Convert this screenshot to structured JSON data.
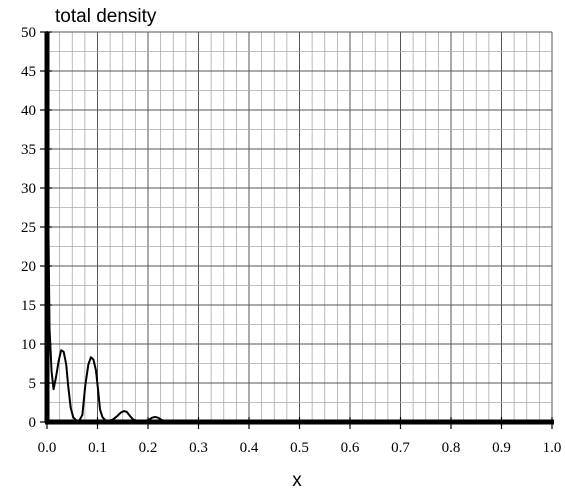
{
  "chart_data": {
    "type": "line",
    "title": "total density",
    "xlabel": "x",
    "ylabel": "",
    "xlim": [
      0.0,
      1.0
    ],
    "ylim": [
      0,
      50
    ],
    "grid": true,
    "x_major_ticks": [
      "0.0",
      "0.1",
      "0.2",
      "0.3",
      "0.4",
      "0.5",
      "0.6",
      "0.7",
      "0.8",
      "0.9",
      "1.0"
    ],
    "x_minor_step": 0.025,
    "y_major_ticks": [
      "0",
      "5",
      "10",
      "15",
      "20",
      "25",
      "30",
      "35",
      "40",
      "45",
      "50"
    ],
    "y_minor_step": 2.5,
    "series": [
      {
        "x": [
          0.0,
          0.002,
          0.005,
          0.009,
          0.013,
          0.018,
          0.023,
          0.028,
          0.033,
          0.038,
          0.042,
          0.047,
          0.052,
          0.058,
          0.064,
          0.07,
          0.076,
          0.082,
          0.087,
          0.092,
          0.097,
          0.101,
          0.105,
          0.11,
          0.116,
          0.122,
          0.13,
          0.138,
          0.146,
          0.152,
          0.158,
          0.164,
          0.17,
          0.178,
          0.186,
          0.194,
          0.202,
          0.208,
          0.214,
          0.22,
          0.226,
          0.232,
          0.24,
          0.25,
          0.26,
          0.3,
          0.4,
          0.5,
          0.6,
          0.7,
          0.8,
          0.9,
          1.0
        ],
        "y": [
          50,
          30,
          12,
          6.5,
          4.2,
          5.8,
          7.8,
          9.2,
          9.0,
          7.4,
          4.6,
          1.8,
          0.6,
          0.2,
          0.2,
          0.9,
          4.8,
          7.4,
          8.3,
          8.0,
          6.6,
          4.2,
          1.6,
          0.6,
          0.2,
          0.15,
          0.3,
          0.7,
          1.2,
          1.4,
          1.3,
          0.8,
          0.35,
          0.15,
          0.1,
          0.15,
          0.3,
          0.55,
          0.65,
          0.55,
          0.3,
          0.12,
          0.05,
          0.02,
          0.0,
          0.0,
          0.0,
          0.0,
          0.0,
          0.0,
          0.0,
          0.0,
          0.0
        ]
      }
    ]
  }
}
